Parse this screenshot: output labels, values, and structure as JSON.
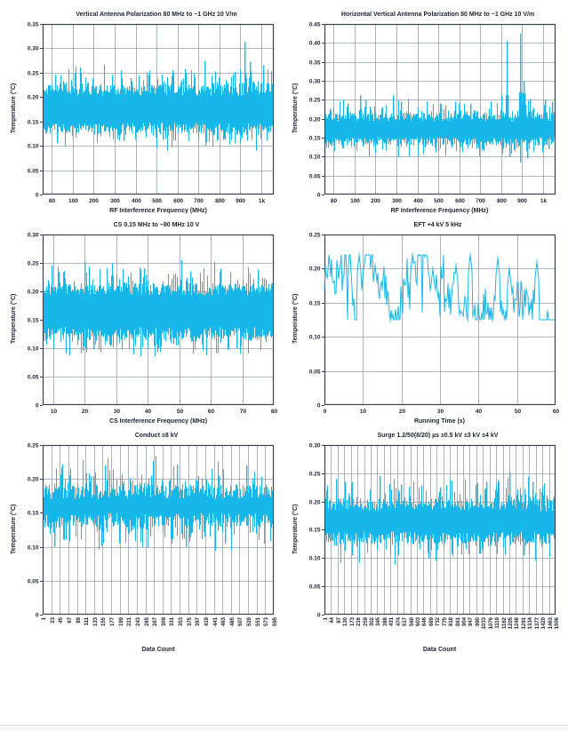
{
  "style": {
    "accent": "#18b7e9",
    "frame": "#3a4050",
    "grid": "#98a0ac",
    "text": "#1c2231",
    "page_bg": "#ffffff",
    "footer_line": "#d9dce1"
  },
  "chart_data": [
    {
      "type": "area",
      "title": "Vertical Antenna Polarization 80 MHz to ~1 GHz 10 V/m",
      "xlabel": "RF Interference Frequency (MHz)",
      "ylabel": "Temperature (°C)",
      "x_ticks": [
        "80",
        "100",
        "200",
        "300",
        "400",
        "500",
        "600",
        "700",
        "800",
        "900",
        "1k"
      ],
      "x_tick_rotate": false,
      "x_left_pad": 0.04,
      "x_right_pad": 0.055,
      "y_max": 0.35,
      "y_step": 0.05,
      "y_tick_labels": [
        "0",
        "0.05",
        "0.10",
        "0.15",
        "0.20",
        "0.25",
        "0.30",
        "0.35"
      ],
      "grid": true,
      "noise_band": [
        0.125,
        0.225
      ],
      "mean": 0.175,
      "spikes": [
        {
          "frac": 0.055,
          "value": 0.245,
          "w": 1
        },
        {
          "frac": 0.14,
          "value": 0.25,
          "w": 1
        },
        {
          "frac": 0.3,
          "value": 0.245,
          "w": 1
        },
        {
          "frac": 0.45,
          "value": 0.25,
          "w": 1
        },
        {
          "frac": 0.56,
          "value": 0.255,
          "w": 1
        },
        {
          "frac": 0.62,
          "value": 0.25,
          "w": 1
        },
        {
          "frac": 0.7,
          "value": 0.274,
          "w": 2
        },
        {
          "frac": 0.76,
          "value": 0.24,
          "w": 1
        },
        {
          "frac": 0.83,
          "value": 0.252,
          "w": 2
        },
        {
          "frac": 0.872,
          "value": 0.313,
          "w": 2
        },
        {
          "frac": 0.895,
          "value": 0.272,
          "w": 4
        },
        {
          "frac": 0.955,
          "value": 0.265,
          "w": 1
        }
      ],
      "dips": [
        {
          "frac": 0.06,
          "value": 0.105,
          "w": 1
        },
        {
          "frac": 0.35,
          "value": 0.11,
          "w": 1
        },
        {
          "frac": 0.52,
          "value": 0.112,
          "w": 1
        }
      ],
      "seed": 11
    },
    {
      "type": "area",
      "title": "Horizontal Vertical Antenna Polarization 80 MHz to ~1 GHz 10 V/m",
      "xlabel": "RF Interference Frequency (MHz)",
      "ylabel": "Temperature (°C)",
      "x_ticks": [
        "80",
        "100",
        "200",
        "300",
        "400",
        "500",
        "600",
        "700",
        "800",
        "900",
        "1k"
      ],
      "x_tick_rotate": false,
      "x_left_pad": 0.04,
      "x_right_pad": 0.055,
      "y_max": 0.45,
      "y_step": 0.05,
      "y_tick_labels": [
        "0",
        "0.05",
        "0.10",
        "0.15",
        "0.20",
        "0.25",
        "0.30",
        "0.35",
        "0.40",
        "0.45"
      ],
      "grid": true,
      "noise_band": [
        0.13,
        0.215
      ],
      "mean": 0.175,
      "spikes": [
        {
          "frac": 0.1,
          "value": 0.24,
          "w": 1
        },
        {
          "frac": 0.155,
          "value": 0.262,
          "w": 2
        },
        {
          "frac": 0.175,
          "value": 0.25,
          "w": 1
        },
        {
          "frac": 0.295,
          "value": 0.262,
          "w": 1
        },
        {
          "frac": 0.33,
          "value": 0.245,
          "w": 1
        },
        {
          "frac": 0.5,
          "value": 0.24,
          "w": 1
        },
        {
          "frac": 0.565,
          "value": 0.245,
          "w": 1
        },
        {
          "frac": 0.63,
          "value": 0.24,
          "w": 1
        },
        {
          "frac": 0.72,
          "value": 0.245,
          "w": 1
        },
        {
          "frac": 0.765,
          "value": 0.262,
          "w": 2
        },
        {
          "frac": 0.79,
          "value": 0.405,
          "w": 2
        },
        {
          "frac": 0.845,
          "value": 0.425,
          "w": 2
        },
        {
          "frac": 0.862,
          "value": 0.3,
          "w": 5
        },
        {
          "frac": 0.89,
          "value": 0.252,
          "w": 3
        },
        {
          "frac": 0.955,
          "value": 0.25,
          "w": 1
        },
        {
          "frac": 0.985,
          "value": 0.245,
          "w": 1
        }
      ],
      "dips": [
        {
          "frac": 0.8,
          "value": 0.1,
          "w": 1
        },
        {
          "frac": 0.845,
          "value": 0.085,
          "w": 1
        },
        {
          "frac": 0.875,
          "value": 0.095,
          "w": 1
        },
        {
          "frac": 0.97,
          "value": 0.12,
          "w": 1
        }
      ],
      "seed": 22
    },
    {
      "type": "area",
      "title": "CS 0.15 MHz to ~80 MHz 10 V",
      "xlabel": "CS Interference Frequency (MHz)",
      "ylabel": "Temperature (°C)",
      "x_ticks": [
        "10",
        "20",
        "30",
        "40",
        "50",
        "60",
        "70",
        "80"
      ],
      "x_tick_rotate": false,
      "x_left_pad": 0.045,
      "x_right_pad": 0.0,
      "y_max": 0.3,
      "y_step": 0.05,
      "y_tick_labels": [
        "0",
        "0.05",
        "0.10",
        "0.15",
        "0.20",
        "0.25",
        "0.30"
      ],
      "grid": true,
      "noise_band": [
        0.115,
        0.215
      ],
      "mean": 0.165,
      "spikes": [
        {
          "frac": 0.04,
          "value": 0.245,
          "w": 1
        },
        {
          "frac": 0.18,
          "value": 0.252,
          "w": 1
        },
        {
          "frac": 0.42,
          "value": 0.242,
          "w": 1
        },
        {
          "frac": 0.44,
          "value": 0.24,
          "w": 1
        },
        {
          "frac": 0.64,
          "value": 0.235,
          "w": 1
        },
        {
          "frac": 0.77,
          "value": 0.24,
          "w": 1
        },
        {
          "frac": 0.93,
          "value": 0.238,
          "w": 1
        }
      ],
      "dips": [
        {
          "frac": 0.22,
          "value": 0.098,
          "w": 1
        },
        {
          "frac": 0.5,
          "value": 0.1,
          "w": 1
        },
        {
          "frac": 0.84,
          "value": 0.1,
          "w": 1
        }
      ],
      "seed": 33
    },
    {
      "type": "line",
      "title": "EFT +4 kV 5 kHz",
      "xlabel": "Running Time (s)",
      "ylabel": "Temperature (°C)",
      "x_ticks": [
        "0",
        "10",
        "20",
        "30",
        "40",
        "50",
        "60"
      ],
      "x_tick_rotate": false,
      "x_left_pad": 0.0,
      "x_right_pad": 0.0,
      "y_max": 0.25,
      "y_step": 0.05,
      "y_tick_labels": [
        "0",
        "0.05",
        "0.10",
        "0.15",
        "0.20",
        "0.25"
      ],
      "grid": true,
      "line_range": [
        0.125,
        0.22
      ],
      "mean": 0.17,
      "peaks": [
        {
          "frac": 0.02,
          "value": 0.21
        },
        {
          "frac": 0.15,
          "value": 0.22
        },
        {
          "frac": 0.22,
          "value": 0.205
        },
        {
          "frac": 0.38,
          "value": 0.22
        },
        {
          "frac": 0.47,
          "value": 0.2
        },
        {
          "frac": 0.57,
          "value": 0.205
        },
        {
          "frac": 0.63,
          "value": 0.22
        },
        {
          "frac": 0.75,
          "value": 0.215
        },
        {
          "frac": 0.8,
          "value": 0.2
        },
        {
          "frac": 0.92,
          "value": 0.21
        }
      ],
      "lows": [
        {
          "frac": 0.1,
          "value": 0.125
        },
        {
          "frac": 0.3,
          "value": 0.125
        },
        {
          "frac": 0.5,
          "value": 0.13
        },
        {
          "frac": 0.78,
          "value": 0.125
        }
      ],
      "seed": 44
    },
    {
      "type": "area",
      "title": "Conduct ±8 kV",
      "xlabel": "Data Count",
      "ylabel": "Temperature (°C)",
      "x_ticks": [
        "1",
        "23",
        "45",
        "67",
        "89",
        "111",
        "133",
        "155",
        "177",
        "199",
        "221",
        "243",
        "265",
        "287",
        "309",
        "331",
        "353",
        "375",
        "397",
        "419",
        "441",
        "463",
        "485",
        "507",
        "529",
        "551",
        "573",
        "595"
      ],
      "x_tick_rotate": true,
      "x_left_pad": 0.0,
      "x_right_pad": 0.0,
      "y_max": 0.25,
      "y_step": 0.05,
      "y_tick_labels": [
        "0",
        "0.05",
        "0.10",
        "0.15",
        "0.20",
        "0.25"
      ],
      "grid": true,
      "noise_band": [
        0.128,
        0.192
      ],
      "mean": 0.163,
      "spikes": [
        {
          "frac": 0.27,
          "value": 0.22,
          "w": 1
        },
        {
          "frac": 0.47,
          "value": 0.205,
          "w": 1
        },
        {
          "frac": 0.58,
          "value": 0.221,
          "w": 1
        },
        {
          "frac": 0.76,
          "value": 0.205,
          "w": 1
        },
        {
          "frac": 0.88,
          "value": 0.22,
          "w": 1
        }
      ],
      "dips": [
        {
          "frac": 0.05,
          "value": 0.1,
          "w": 1
        },
        {
          "frac": 0.33,
          "value": 0.105,
          "w": 1
        },
        {
          "frac": 0.62,
          "value": 0.1,
          "w": 1
        },
        {
          "frac": 0.79,
          "value": 0.105,
          "w": 1
        }
      ],
      "seed": 55
    },
    {
      "type": "area",
      "title": "Surge 1.2/50(8/20) µs ±0.5 kV ±3 kV ±4 kV",
      "xlabel": "Data Count",
      "ylabel": "Temperature (°C)",
      "x_ticks": [
        "1",
        "44",
        "87",
        "130",
        "173",
        "216",
        "259",
        "302",
        "345",
        "388",
        "431",
        "474",
        "517",
        "560",
        "603",
        "646",
        "689",
        "732",
        "775",
        "818",
        "861",
        "904",
        "947",
        "990",
        "1033",
        "1076",
        "1119",
        "1162",
        "1205",
        "1248",
        "1291",
        "1334",
        "1377",
        "1420",
        "1463",
        "1506"
      ],
      "x_tick_rotate": true,
      "x_left_pad": 0.0,
      "x_right_pad": 0.0,
      "y_max": 0.3,
      "y_step": 0.05,
      "y_tick_labels": [
        "0",
        "0.05",
        "0.10",
        "0.15",
        "0.20",
        "0.25",
        "0.30"
      ],
      "grid": true,
      "noise_band": [
        0.125,
        0.205
      ],
      "mean": 0.168,
      "spikes": [
        {
          "frac": 0.05,
          "value": 0.24,
          "w": 1
        },
        {
          "frac": 0.09,
          "value": 0.235,
          "w": 1
        },
        {
          "frac": 0.24,
          "value": 0.245,
          "w": 1
        },
        {
          "frac": 0.33,
          "value": 0.23,
          "w": 1
        },
        {
          "frac": 0.5,
          "value": 0.225,
          "w": 1
        },
        {
          "frac": 0.655,
          "value": 0.23,
          "w": 1
        },
        {
          "frac": 0.7,
          "value": 0.235,
          "w": 1
        },
        {
          "frac": 0.8,
          "value": 0.252,
          "w": 1
        },
        {
          "frac": 0.9,
          "value": 0.235,
          "w": 1
        }
      ],
      "dips": [
        {
          "frac": 0.12,
          "value": 0.105,
          "w": 1
        },
        {
          "frac": 0.45,
          "value": 0.1,
          "w": 1
        },
        {
          "frac": 0.86,
          "value": 0.105,
          "w": 1
        }
      ],
      "seed": 66
    }
  ]
}
